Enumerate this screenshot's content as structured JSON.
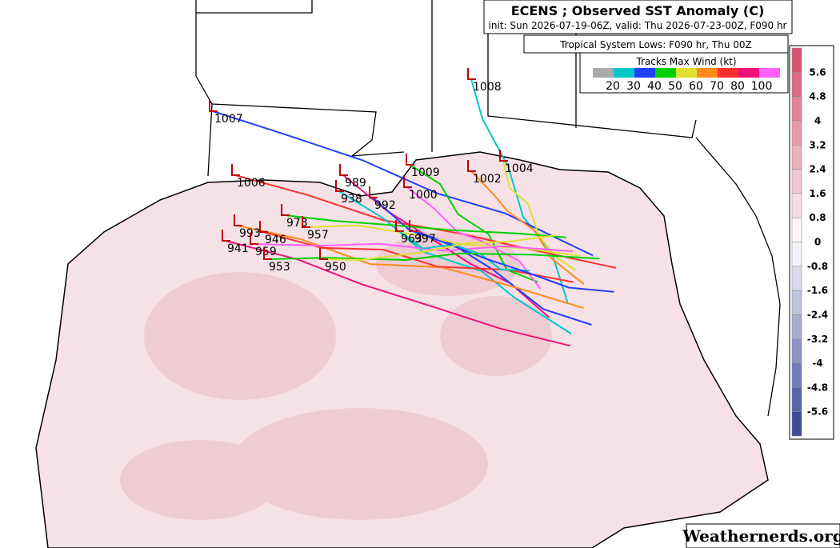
{
  "header": {
    "title": "ECENS ; Observed SST Anomaly (C)",
    "subtitle": "init: Sun 2026-07-19-06Z, valid: Thu 2026-07-23-00Z, F090 hr"
  },
  "lows_title": "Tropical System Lows: F090 hr, Thu 00Z",
  "track_legend": {
    "title": "Tracks Max Wind (kt)",
    "labels": [
      "20",
      "30",
      "40",
      "50",
      "60",
      "70",
      "80",
      "100"
    ]
  },
  "colorbar": {
    "labels": [
      "5.6",
      "4.8",
      "4",
      "3.2",
      "2.4",
      "1.6",
      "0.8",
      "0",
      "-0.8",
      "-1.6",
      "-2.4",
      "-3.2",
      "-4",
      "-4.8",
      "-5.6"
    ]
  },
  "lows": [
    {
      "label": "1008"
    },
    {
      "label": "1007"
    },
    {
      "label": "1009"
    },
    {
      "label": "1004"
    },
    {
      "label": "1002"
    },
    {
      "label": "1006"
    },
    {
      "label": "989"
    },
    {
      "label": "1000"
    },
    {
      "label": "938"
    },
    {
      "label": "992"
    },
    {
      "label": "973"
    },
    {
      "label": "957"
    },
    {
      "label": "993"
    },
    {
      "label": "946"
    },
    {
      "label": "941"
    },
    {
      "label": "959"
    },
    {
      "label": "963"
    },
    {
      "label": "997"
    },
    {
      "label": "953"
    },
    {
      "label": "950"
    }
  ],
  "watermark": "Weathernerds.org"
}
